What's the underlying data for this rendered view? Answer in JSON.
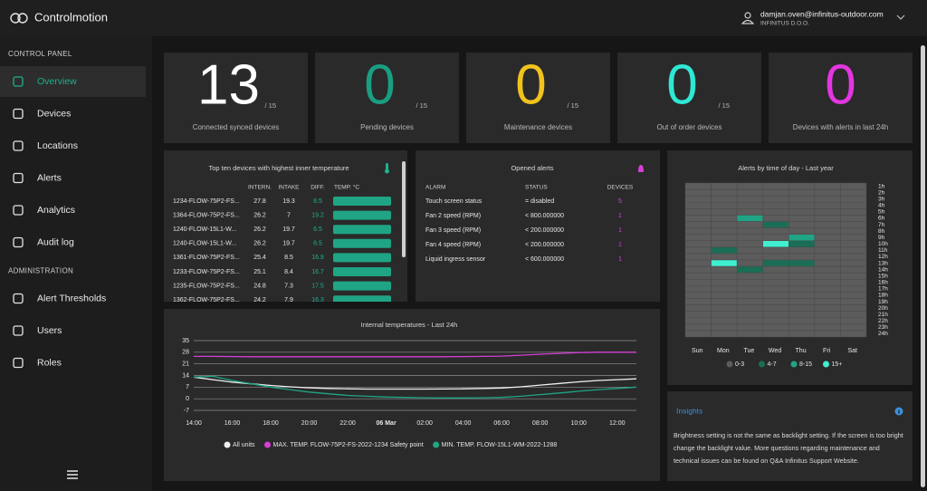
{
  "header": {
    "brand": "Controlmotion",
    "user_email": "damjan.oven@infinitus-outdoor.com",
    "company": "INFINITUS D.O.O."
  },
  "sidebar": [
    {
      "title": "CONTROL PANEL",
      "items": [
        "Overview",
        "Devices",
        "Locations",
        "Alerts",
        "Analytics",
        "Audit log"
      ]
    },
    {
      "title": "ADMINISTRATION",
      "items": [
        "Alert Thresholds",
        "Users",
        "Roles"
      ]
    }
  ],
  "stats": [
    {
      "value": 13,
      "total": "/ 15",
      "label": "Connected synced devices",
      "color": "#ffffff"
    },
    {
      "value": 0,
      "total": "/ 15",
      "label": "Pending devices",
      "color": "#1a9e82"
    },
    {
      "value": 0,
      "total": "/ 15",
      "label": "Maintenance devices",
      "color": "#f2c31c"
    },
    {
      "value": 0,
      "total": "/ 15",
      "label": "Out of order devices",
      "color": "#2ee8d4"
    },
    {
      "value": 0,
      "label": "Devices with alerts in last 24h",
      "color": "#e336e0"
    }
  ],
  "top_devices": {
    "title": "Top ten devices with highest inner temperature",
    "columns": [
      "INTERN.",
      "INTAKE",
      "DIFF.",
      "TEMP. °C"
    ],
    "rows": [
      [
        "1234-FLOW-75P2-FS...",
        27.8,
        19.3,
        8.5
      ],
      [
        "1364-FLOW-75P2-FS...",
        26.2,
        7,
        19.2
      ],
      [
        "1240-FLOW-15L1-W...",
        26.2,
        19.7,
        6.5
      ],
      [
        "1240-FLOW-15L1-W...",
        26.2,
        19.7,
        6.5
      ],
      [
        "1361-FLOW-75P2-FS...",
        25.4,
        8.5,
        16.9
      ],
      [
        "1233-FLOW-75P2-FS...",
        25.1,
        8.4,
        16.7
      ],
      [
        "1235-FLOW-75P2-FS...",
        24.8,
        7.3,
        17.5
      ],
      [
        "1362-FLOW-75P2-FS...",
        24.2,
        7.9,
        16.3
      ]
    ]
  },
  "alerts": {
    "title": "Opened alerts",
    "columns": [
      "ALARM",
      "STATUS",
      "DEVICES"
    ],
    "rows": [
      [
        "Touch screen status",
        "= disabled",
        5
      ],
      [
        "Fan 2 speed (RPM)",
        "< 800.000000",
        1
      ],
      [
        "Fan 3 speed (RPM)",
        "< 200.000000",
        1
      ],
      [
        "Fan 4 speed (RPM)",
        "< 200.000000",
        1
      ],
      [
        "Liquid ingress sensor",
        "< 600.000000",
        1
      ]
    ]
  },
  "chart_data": [
    {
      "type": "line",
      "title": "Internal temperatures - Last 24h",
      "x": [
        "14:00",
        null,
        "16:00",
        null,
        "18:00",
        null,
        "20:00",
        null,
        "22:00",
        null,
        "06 Mar",
        null,
        "02:00",
        null,
        "04:00",
        null,
        "06:00",
        null,
        "08:00",
        null,
        "10:00",
        null,
        "12:00",
        null
      ],
      "ylim": [
        -7,
        35
      ],
      "yticks": [
        35,
        28,
        21,
        14,
        7,
        0,
        -7
      ],
      "grid": true,
      "series": [
        {
          "name": "All units",
          "color": "#f0f0f0",
          "values": [
            13,
            11.5,
            10,
            9,
            8,
            7.2,
            6.6,
            6.2,
            6,
            5.8,
            5.8,
            5.8,
            5.8,
            5.9,
            6,
            6.2,
            6.5,
            7.2,
            8.2,
            9.2,
            10.2,
            11,
            11.5,
            12
          ]
        },
        {
          "name": "MAX. TEMP. FLOW-75P2-FS-2022-1234 Safety point",
          "color": "#d63fd6",
          "values": [
            25.5,
            25.5,
            25.4,
            25.3,
            25.3,
            25.3,
            25.3,
            25.3,
            25.3,
            25.3,
            25.3,
            25.3,
            25.3,
            25.3,
            25.4,
            25.5,
            25.7,
            26.2,
            26.8,
            27.3,
            27.8,
            28,
            28,
            28
          ]
        },
        {
          "name": "MIN. TEMP. FLOW-15L1-WM-2022-1288",
          "color": "#1fa585",
          "values": [
            13,
            13.5,
            11,
            9,
            7,
            5.5,
            4,
            3,
            2,
            1.5,
            1,
            0.8,
            0.6,
            0.5,
            0.5,
            0.6,
            0.8,
            1.5,
            2.5,
            3.5,
            4.5,
            5.5,
            6.2,
            7
          ]
        }
      ]
    },
    {
      "type": "heatmap",
      "title": "Alerts by time of day - Last year",
      "x": [
        "Sun",
        "Mon",
        "Tue",
        "Wed",
        "Thu",
        "Fri",
        "Sat"
      ],
      "y": [
        "1h",
        "2h",
        "3h",
        "4h",
        "5h",
        "6h",
        "7h",
        "8h",
        "9h",
        "10h",
        "11h",
        "12h",
        "13h",
        "14h",
        "15h",
        "16h",
        "17h",
        "18h",
        "19h",
        "20h",
        "21h",
        "22h",
        "23h",
        "24h"
      ],
      "values": [
        [
          0,
          0,
          0,
          0,
          0,
          0,
          0,
          0,
          0,
          0,
          0,
          0,
          0,
          0,
          0,
          0,
          0,
          0,
          0,
          0,
          0,
          0,
          0,
          0
        ],
        [
          0,
          0,
          0,
          0,
          0,
          0,
          0,
          0,
          0,
          0,
          5,
          0,
          18,
          0,
          0,
          0,
          0,
          0,
          0,
          0,
          0,
          0,
          0,
          0
        ],
        [
          0,
          0,
          0,
          0,
          0,
          10,
          0,
          0,
          0,
          0,
          0,
          0,
          0,
          5,
          0,
          0,
          0,
          0,
          0,
          0,
          0,
          0,
          0,
          0
        ],
        [
          0,
          0,
          0,
          0,
          0,
          0,
          5,
          0,
          0,
          18,
          0,
          0,
          5,
          0,
          0,
          0,
          0,
          0,
          0,
          0,
          0,
          0,
          0,
          0
        ],
        [
          0,
          0,
          0,
          0,
          0,
          0,
          0,
          0,
          10,
          5,
          0,
          0,
          5,
          0,
          0,
          0,
          0,
          0,
          0,
          0,
          0,
          0,
          0,
          0
        ],
        [
          0,
          0,
          0,
          0,
          0,
          0,
          0,
          0,
          0,
          0,
          0,
          0,
          0,
          0,
          0,
          0,
          0,
          0,
          0,
          0,
          0,
          0,
          0,
          0
        ],
        [
          0,
          0,
          0,
          0,
          0,
          0,
          0,
          0,
          0,
          0,
          0,
          0,
          0,
          0,
          0,
          0,
          0,
          0,
          0,
          0,
          0,
          0,
          0,
          0
        ]
      ],
      "scale": [
        {
          "label": "0-3",
          "min": 0,
          "color": "#5c5c5c"
        },
        {
          "label": "4-7",
          "min": 4,
          "color": "#1b6e56"
        },
        {
          "label": "8-15",
          "min": 8,
          "color": "#1fa585"
        },
        {
          "label": "15+",
          "min": 15,
          "color": "#3ff0d0"
        }
      ]
    }
  ],
  "insights": {
    "title": "Insights",
    "text": "Brightness setting is not the same as backlight setting. If the screen is too bright change the backlight value. More questions regarding maintenance and technical issues can be found on Q&A Infinitus Support Website."
  }
}
